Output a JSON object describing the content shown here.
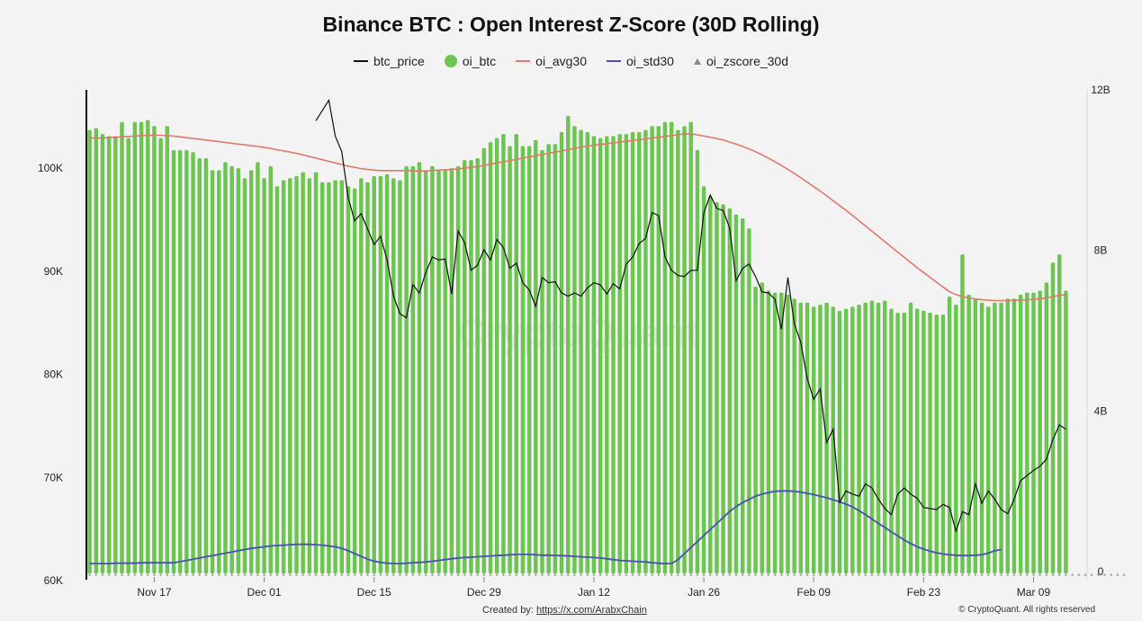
{
  "chart_data": {
    "type": "bar",
    "title": "Binance BTC : Open Interest Z-Score (30D Rolling)",
    "legend": [
      "btc_price",
      "oi_btc",
      "oi_avg30",
      "oi_std30",
      "oi_zscore_30d"
    ],
    "left_axis": {
      "ticks": [
        "60K",
        "70K",
        "80K",
        "90K",
        "100K"
      ],
      "range": [
        60000,
        107500
      ]
    },
    "right_axis": {
      "ticks": [
        "0",
        "4B",
        "8B",
        "12B"
      ],
      "range": [
        -0.2,
        12.0
      ],
      "unit": "B"
    },
    "x_ticks": [
      "Nov 17",
      "Dec 01",
      "Dec 15",
      "Dec 29",
      "Jan 12",
      "Jan 26",
      "Feb 09",
      "Feb 23",
      "Mar 09"
    ],
    "watermark": "CryptoQuant",
    "colors": {
      "oi_btc": "#6cc550",
      "btc_price": "#111111",
      "oi_avg30": "#e07a6a",
      "oi_std30": "#4a4fb8",
      "oi_zscore_30d": "#999999"
    },
    "series": [
      {
        "name": "oi_btc",
        "unit": "B",
        "values": [
          11.0,
          11.05,
          10.9,
          10.85,
          10.85,
          11.2,
          10.8,
          11.2,
          11.2,
          11.25,
          11.1,
          10.8,
          11.1,
          10.5,
          10.5,
          10.5,
          10.45,
          10.3,
          10.3,
          10.0,
          10.0,
          10.2,
          10.1,
          10.05,
          9.8,
          10.0,
          10.2,
          9.8,
          10.1,
          9.6,
          9.75,
          9.8,
          9.85,
          9.95,
          9.8,
          9.95,
          9.7,
          9.7,
          9.75,
          9.75,
          9.6,
          9.55,
          9.8,
          9.7,
          9.85,
          9.85,
          9.9,
          9.8,
          9.75,
          10.1,
          10.1,
          10.2,
          10.0,
          10.1,
          10.0,
          10.0,
          10.05,
          10.1,
          10.25,
          10.25,
          10.3,
          10.55,
          10.7,
          10.8,
          10.9,
          10.6,
          10.9,
          10.6,
          10.6,
          10.75,
          10.5,
          10.65,
          10.65,
          10.95,
          11.35,
          11.1,
          11.0,
          10.95,
          10.85,
          10.8,
          10.85,
          10.85,
          10.9,
          10.9,
          10.95,
          10.95,
          11.0,
          11.1,
          11.1,
          11.2,
          11.2,
          11.0,
          11.1,
          11.2,
          10.5,
          9.6,
          9.35,
          9.2,
          9.15,
          9.05,
          8.9,
          8.8,
          8.55,
          7.1,
          7.2,
          7.0,
          6.95,
          6.95,
          6.9,
          6.8,
          6.7,
          6.7,
          6.6,
          6.65,
          6.7,
          6.6,
          6.5,
          6.55,
          6.6,
          6.65,
          6.7,
          6.75,
          6.7,
          6.75,
          6.55,
          6.45,
          6.45,
          6.7,
          6.55,
          6.5,
          6.45,
          6.4,
          6.4,
          6.85,
          6.65,
          7.9,
          6.9,
          6.8,
          6.7,
          6.6,
          6.7,
          6.7,
          6.8,
          6.8,
          6.9,
          6.95,
          6.95,
          7.0,
          7.2,
          7.7,
          7.9,
          7.0
        ]
      },
      {
        "name": "oi_avg30",
        "unit": "B",
        "values": [
          10.8,
          10.8,
          10.8,
          10.81,
          10.82,
          10.83,
          10.84,
          10.85,
          10.86,
          10.87,
          10.87,
          10.87,
          10.86,
          10.85,
          10.83,
          10.81,
          10.79,
          10.77,
          10.75,
          10.73,
          10.71,
          10.69,
          10.67,
          10.65,
          10.63,
          10.61,
          10.59,
          10.57,
          10.54,
          10.51,
          10.48,
          10.45,
          10.42,
          10.38,
          10.34,
          10.3,
          10.26,
          10.22,
          10.18,
          10.14,
          10.1,
          10.07,
          10.04,
          10.02,
          10.0,
          9.99,
          9.99,
          9.99,
          9.99,
          9.99,
          9.98,
          9.98,
          9.98,
          9.99,
          10.0,
          10.01,
          10.02,
          10.03,
          10.05,
          10.07,
          10.09,
          10.12,
          10.15,
          10.18,
          10.21,
          10.24,
          10.27,
          10.3,
          10.33,
          10.36,
          10.39,
          10.42,
          10.45,
          10.48,
          10.51,
          10.54,
          10.57,
          10.6,
          10.62,
          10.64,
          10.66,
          10.68,
          10.7,
          10.72,
          10.74,
          10.76,
          10.78,
          10.8,
          10.82,
          10.84,
          10.86,
          10.88,
          10.9,
          10.9,
          10.88,
          10.85,
          10.82,
          10.79,
          10.75,
          10.7,
          10.65,
          10.59,
          10.53,
          10.46,
          10.38,
          10.3,
          10.21,
          10.12,
          10.02,
          9.92,
          9.81,
          9.7,
          9.59,
          9.48,
          9.36,
          9.24,
          9.12,
          9.0,
          8.87,
          8.74,
          8.61,
          8.48,
          8.35,
          8.22,
          8.09,
          7.96,
          7.83,
          7.7,
          7.57,
          7.45,
          7.33,
          7.21,
          7.09,
          6.97,
          6.9,
          6.85,
          6.82,
          6.79,
          6.77,
          6.76,
          6.75,
          6.75,
          6.75,
          6.76,
          6.76,
          6.77,
          6.78,
          6.8,
          6.82,
          6.85,
          6.88,
          6.9
        ]
      },
      {
        "name": "oi_std30",
        "unit": "B",
        "values": [
          0.2,
          0.2,
          0.2,
          0.2,
          0.21,
          0.21,
          0.21,
          0.21,
          0.22,
          0.22,
          0.22,
          0.22,
          0.22,
          0.22,
          0.25,
          0.28,
          0.31,
          0.34,
          0.37,
          0.4,
          0.43,
          0.46,
          0.49,
          0.52,
          0.55,
          0.58,
          0.6,
          0.62,
          0.64,
          0.65,
          0.66,
          0.67,
          0.68,
          0.68,
          0.68,
          0.67,
          0.66,
          0.64,
          0.62,
          0.58,
          0.52,
          0.45,
          0.38,
          0.31,
          0.26,
          0.23,
          0.21,
          0.2,
          0.2,
          0.21,
          0.22,
          0.23,
          0.24,
          0.26,
          0.28,
          0.3,
          0.32,
          0.34,
          0.35,
          0.36,
          0.37,
          0.38,
          0.39,
          0.4,
          0.41,
          0.42,
          0.43,
          0.43,
          0.43,
          0.42,
          0.41,
          0.41,
          0.4,
          0.4,
          0.39,
          0.38,
          0.37,
          0.36,
          0.35,
          0.34,
          0.32,
          0.3,
          0.28,
          0.27,
          0.26,
          0.25,
          0.24,
          0.22,
          0.21,
          0.2,
          0.2,
          0.3,
          0.45,
          0.6,
          0.75,
          0.9,
          1.05,
          1.2,
          1.35,
          1.5,
          1.62,
          1.72,
          1.8,
          1.88,
          1.93,
          1.97,
          2.0,
          2.01,
          2.01,
          2.0,
          1.98,
          1.95,
          1.92,
          1.88,
          1.84,
          1.79,
          1.74,
          1.68,
          1.61,
          1.52,
          1.42,
          1.31,
          1.2,
          1.1,
          0.99,
          0.89,
          0.79,
          0.7,
          0.62,
          0.56,
          0.51,
          0.47,
          0.44,
          0.42,
          0.41,
          0.4,
          0.4,
          0.41,
          0.42,
          0.46,
          0.52,
          0.55
        ]
      },
      {
        "name": "btc_price",
        "unit": "USD",
        "values": [
          104500,
          105500,
          106500,
          103000,
          101500,
          97000,
          94800,
          95500,
          94000,
          92500,
          93300,
          91000,
          87500,
          85800,
          85400,
          88600,
          87800,
          89800,
          91300,
          91000,
          91100,
          87700,
          93800,
          92700,
          90000,
          90500,
          92000,
          91000,
          93000,
          92200,
          90200,
          90700,
          88800,
          88100,
          86500,
          89300,
          88800,
          88900,
          87800,
          87500,
          87800,
          87500,
          88300,
          88800,
          88600,
          87700,
          88700,
          88200,
          90600,
          91300,
          92600,
          93100,
          95600,
          95300,
          91300,
          90000,
          89500,
          89400,
          90000,
          90000,
          95600,
          97300,
          96000,
          95800,
          94100,
          89000,
          90200,
          90600,
          89400,
          87900,
          87800,
          87200,
          84300,
          89300,
          84800,
          83000,
          79500,
          77500,
          78500,
          73300,
          74600,
          67500,
          68600,
          68300,
          68100,
          69300,
          68900,
          67800,
          66900,
          66300,
          68300,
          68900,
          68300,
          67900,
          67000,
          66900,
          66800,
          67300,
          67000,
          64700,
          66600,
          66300,
          69300,
          67400,
          68600,
          67800,
          66800,
          66400,
          67800,
          69600,
          70100,
          70600,
          71000,
          71700,
          73600,
          75000,
          74600
        ]
      },
      {
        "name": "oi_zscore_30d",
        "unit": "B",
        "values": [
          0,
          0,
          0,
          0,
          0,
          0,
          0,
          0,
          0,
          0,
          0,
          0,
          0,
          0,
          0,
          0,
          0,
          0,
          0,
          0,
          0,
          0,
          0,
          0,
          0,
          0,
          0,
          0,
          0,
          0,
          0,
          0,
          0,
          0,
          0,
          0,
          0,
          0,
          0,
          0,
          0,
          0,
          0,
          0,
          0,
          0,
          0,
          0,
          0,
          0,
          0,
          0,
          0,
          0,
          0,
          0,
          0,
          0,
          0,
          0,
          0,
          0,
          0,
          0,
          0,
          0,
          0,
          0,
          0,
          0,
          0,
          0,
          0,
          0,
          0,
          0,
          0,
          0,
          0,
          0,
          0,
          0,
          0,
          0,
          0,
          0,
          0,
          0,
          0,
          0,
          0,
          0,
          0,
          0,
          0,
          0,
          0,
          0,
          0,
          0,
          0,
          0,
          0,
          0,
          0,
          0,
          0,
          0,
          0,
          0,
          0,
          0,
          0,
          0,
          0,
          0,
          0,
          0,
          0,
          0,
          0,
          0,
          0,
          0,
          0,
          0,
          0,
          0,
          0,
          0,
          0,
          0,
          0,
          0,
          0,
          0,
          0,
          0,
          0,
          0,
          0,
          0,
          0,
          0,
          0,
          0,
          0,
          0,
          0,
          0,
          0,
          0,
          0,
          0,
          0,
          0,
          0,
          0,
          0,
          0,
          0
        ]
      }
    ]
  },
  "footer": {
    "created_prefix": "Created by:",
    "created_link": "https://x.com/ArabxChain",
    "copyright": "© CryptoQuant. All rights reserved"
  }
}
